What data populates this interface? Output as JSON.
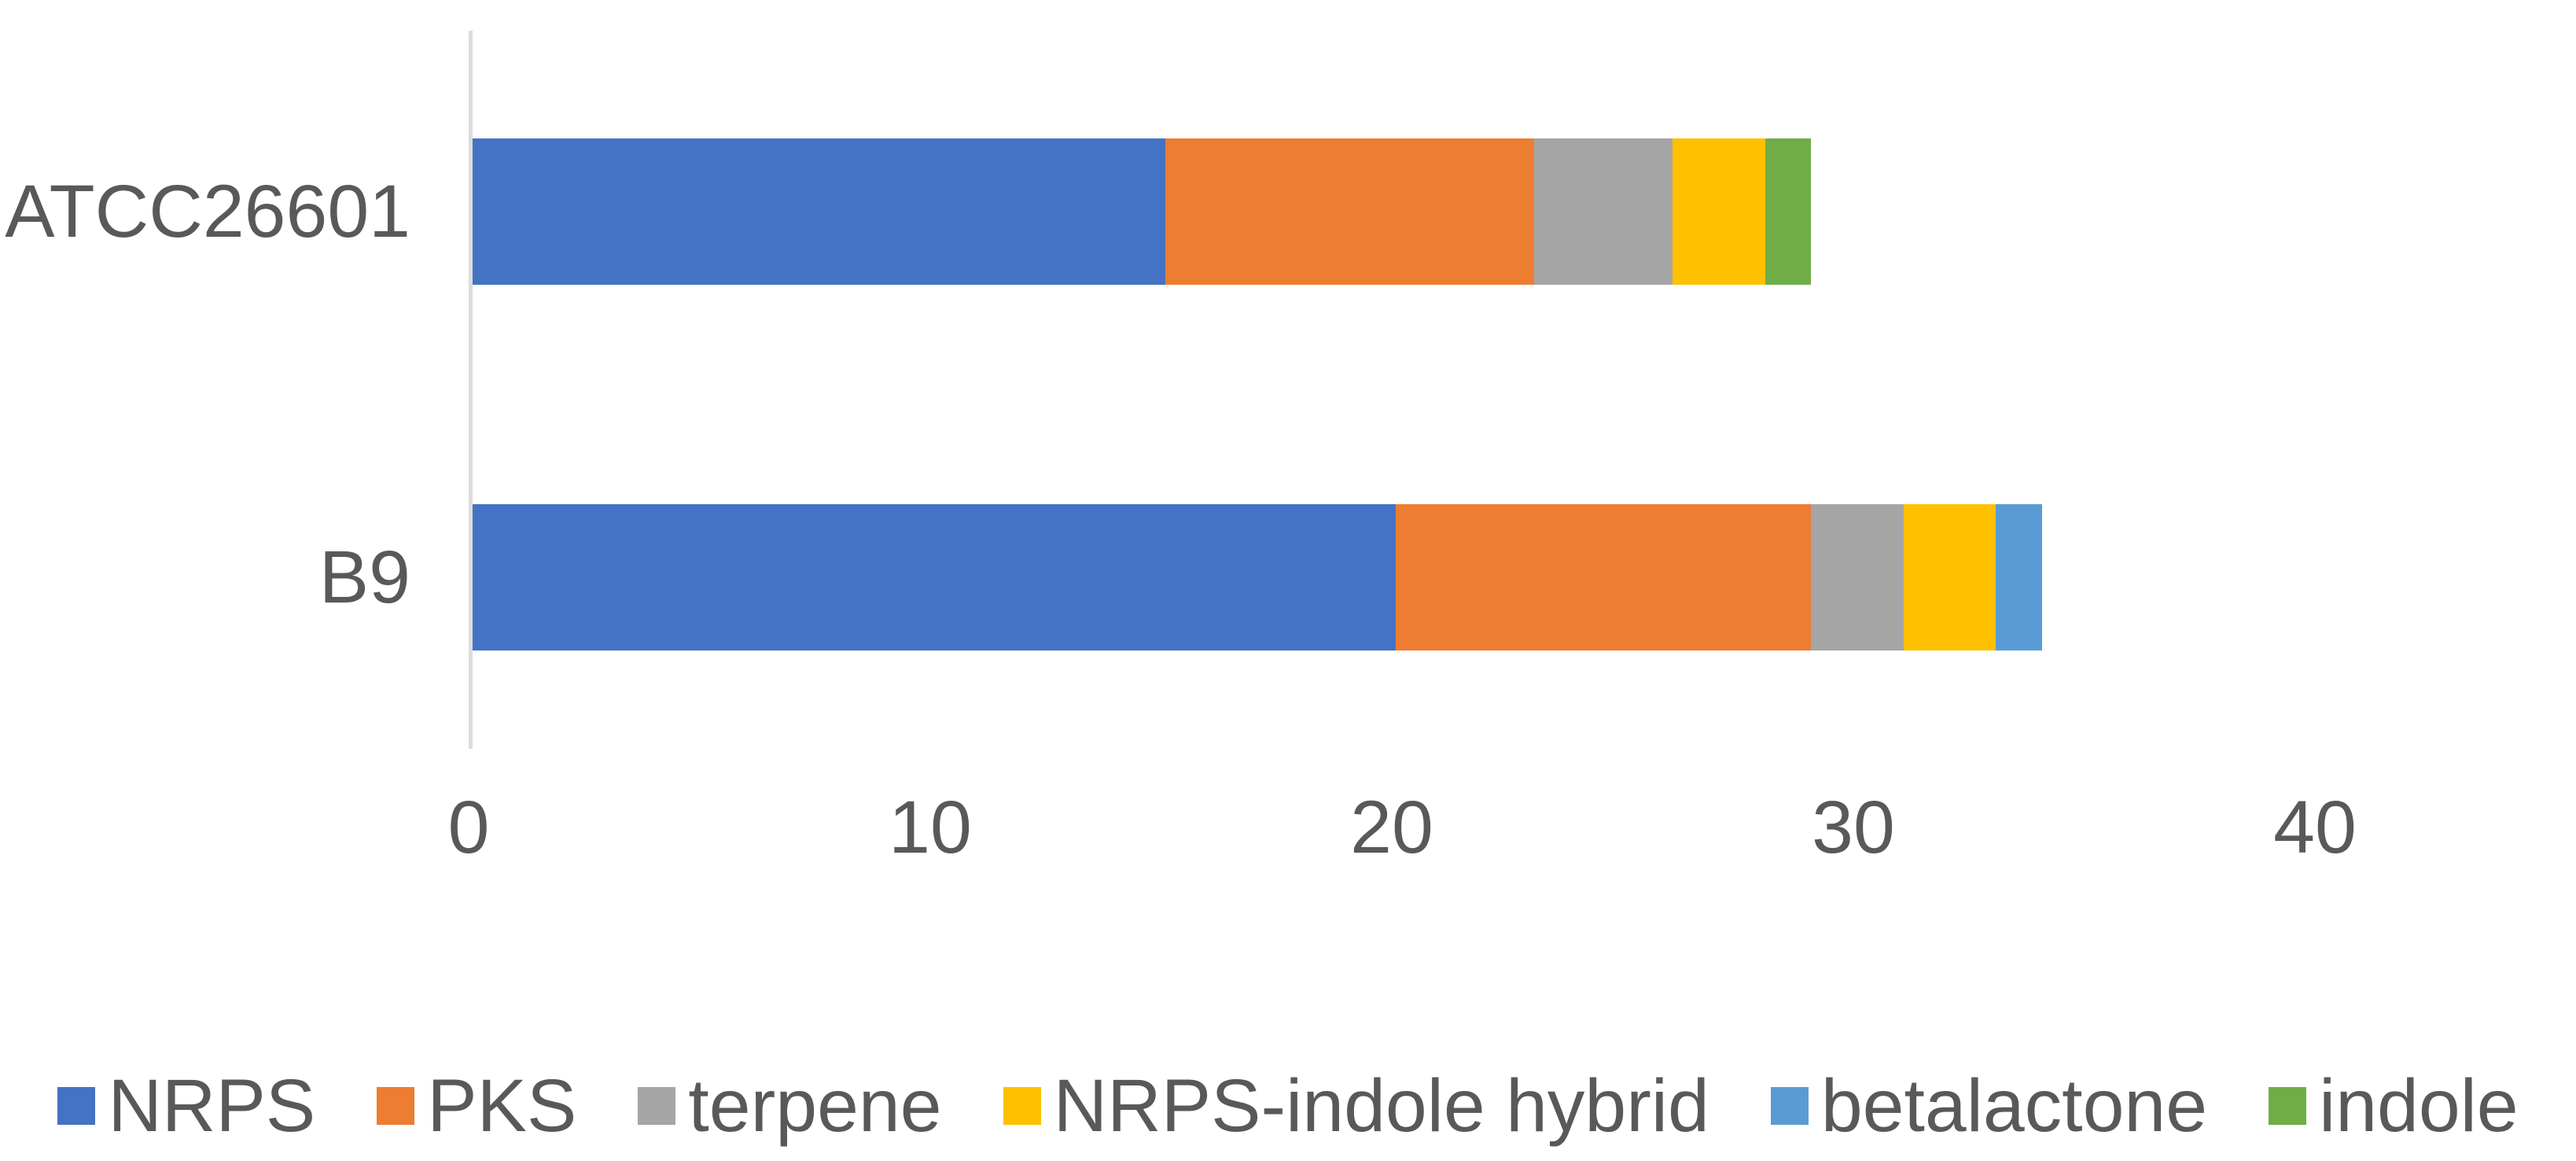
{
  "chart_data": {
    "type": "bar",
    "orientation": "horizontal",
    "stacked": true,
    "title": "",
    "xlabel": "",
    "ylabel": "",
    "grid": false,
    "legend_position": "bottom",
    "categories": [
      "ATCC26601",
      "B9"
    ],
    "series": [
      {
        "name": "NRPS",
        "color": "#4472C4",
        "values": [
          15,
          20
        ]
      },
      {
        "name": "PKS",
        "color": "#ED7D31",
        "values": [
          8,
          9
        ]
      },
      {
        "name": "terpene",
        "color": "#A5A5A5",
        "values": [
          3,
          2
        ]
      },
      {
        "name": "NRPS-indole hybrid",
        "color": "#FFC000",
        "values": [
          2,
          2
        ]
      },
      {
        "name": "betalactone",
        "color": "#5B9BD5",
        "values": [
          0,
          1
        ]
      },
      {
        "name": "indole",
        "color": "#70AD47",
        "values": [
          1,
          0
        ]
      }
    ],
    "x_axis": {
      "min": 0,
      "max": 40,
      "ticks": [
        0,
        10,
        20,
        30,
        40
      ]
    },
    "category_totals": [
      29,
      34
    ]
  },
  "colors": {
    "text": "#595959",
    "axis_line": "#dcdcdc",
    "background": "#ffffff"
  }
}
